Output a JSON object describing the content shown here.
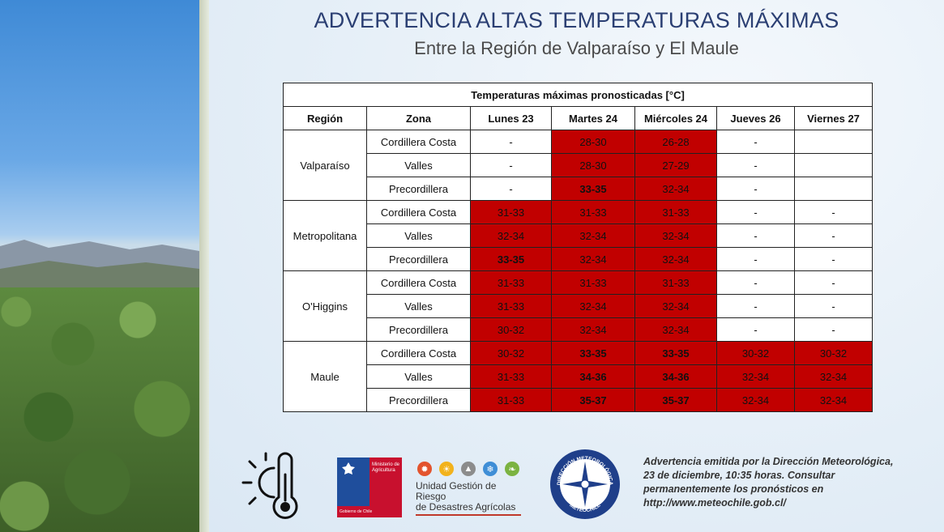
{
  "header": {
    "title": "ADVERTENCIA ALTAS TEMPERATURAS MÁXIMAS",
    "subtitle": "Entre la Región de Valparaíso y El Maule"
  },
  "table": {
    "caption": "Temperaturas máximas pronosticadas [°C]",
    "headers": [
      "Región",
      "Zona",
      "Lunes 23",
      "Martes 24",
      "Miércoles 24",
      "Jueves 26",
      "Viernes 27"
    ],
    "regions": [
      {
        "name": "Valparaíso",
        "rows": [
          {
            "zona": "Cordillera Costa",
            "cells": [
              "-",
              "28-30",
              "26-28",
              "-",
              ""
            ]
          },
          {
            "zona": "Valles",
            "cells": [
              "-",
              "28-30",
              "27-29",
              "-",
              ""
            ]
          },
          {
            "zona": "Precordillera",
            "cells": [
              "-",
              "33-35",
              "32-34",
              "-",
              ""
            ]
          }
        ]
      },
      {
        "name": "Metropolitana",
        "rows": [
          {
            "zona": "Cordillera Costa",
            "cells": [
              "31-33",
              "31-33",
              "31-33",
              "-",
              "-"
            ]
          },
          {
            "zona": "Valles",
            "cells": [
              "32-34",
              "32-34",
              "32-34",
              "-",
              "-"
            ]
          },
          {
            "zona": "Precordillera",
            "cells": [
              "33-35",
              "32-34",
              "32-34",
              "-",
              "-"
            ]
          }
        ]
      },
      {
        "name": "O'Higgins",
        "rows": [
          {
            "zona": "Cordillera Costa",
            "cells": [
              "31-33",
              "31-33",
              "31-33",
              "-",
              "-"
            ]
          },
          {
            "zona": "Valles",
            "cells": [
              "31-33",
              "32-34",
              "32-34",
              "-",
              "-"
            ]
          },
          {
            "zona": "Precordillera",
            "cells": [
              "30-32",
              "32-34",
              "32-34",
              "-",
              "-"
            ]
          }
        ]
      },
      {
        "name": "Maule",
        "rows": [
          {
            "zona": "Cordillera Costa",
            "cells": [
              "30-32",
              "33-35",
              "33-35",
              "30-32",
              "30-32"
            ]
          },
          {
            "zona": "Valles",
            "cells": [
              "31-33",
              "34-36",
              "34-36",
              "32-34",
              "32-34"
            ]
          },
          {
            "zona": "Precordillera",
            "cells": [
              "31-33",
              "35-37",
              "35-37",
              "32-34",
              "32-34"
            ]
          }
        ]
      }
    ]
  },
  "logos": {
    "minagri_line1": "Ministerio de",
    "minagri_line2": "Agricultura",
    "minagri_gov": "Gobierno de Chile",
    "ugr_line1": "Unidad Gestión de Riesgo",
    "ugr_line2": "de Desastres Agrícolas",
    "meteo_top": "DIRECCIÓN METEOROLÓGICA",
    "meteo_bottom": "METEOCHILE"
  },
  "note": "Advertencia emitida por la Dirección Meteorológica, 23 de diciembre, 10:35 horas. Consultar permanentemente los pronósticos en http://www.meteochile.gob.cl/",
  "colors": {
    "alert_red": "#c10000",
    "title_blue": "#2b3f73"
  }
}
